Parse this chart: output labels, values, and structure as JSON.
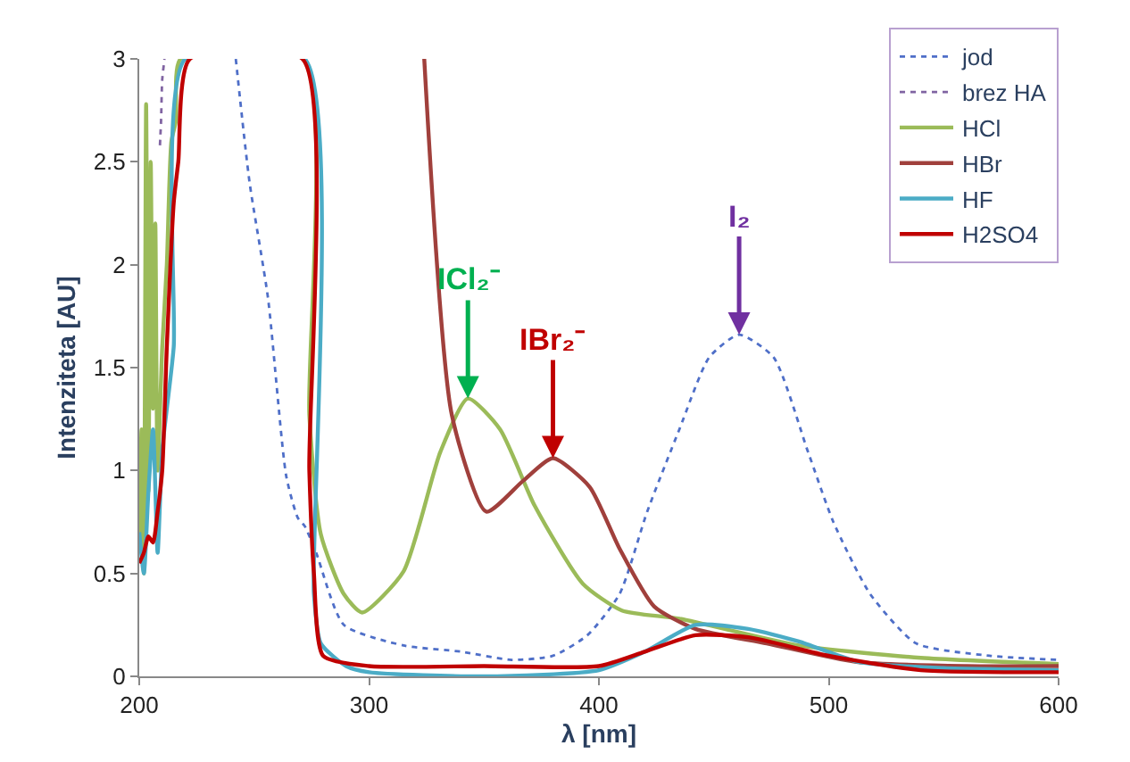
{
  "chart_data": {
    "type": "line",
    "xlabel": "λ [nm]",
    "ylabel": "Intenziteta [AU]",
    "xlim": [
      200,
      600
    ],
    "xticks": [
      200,
      300,
      400,
      500,
      600
    ],
    "ylim": [
      0,
      3
    ],
    "yticks": [
      0,
      0.5,
      1,
      1.5,
      2,
      2.5,
      3
    ],
    "grid": false,
    "legend": "top right",
    "marker": "none",
    "series": [
      {
        "name": "jod",
        "color": "#4f6fc8",
        "line_style": "dotted",
        "x": [
          242,
          248,
          256,
          264,
          269,
          272,
          277,
          289,
          315,
          340,
          362,
          380,
          395,
          409,
          421,
          435,
          448,
          461,
          476,
          491,
          502,
          518,
          538,
          570,
          600
        ],
        "values": [
          3,
          2.4,
          1.84,
          0.97,
          0.77,
          0.73,
          0.6,
          0.25,
          0.15,
          0.12,
          0.08,
          0.1,
          0.2,
          0.4,
          0.8,
          1.2,
          1.55,
          1.66,
          1.55,
          1.09,
          0.75,
          0.4,
          0.16,
          0.1,
          0.08
        ]
      },
      {
        "name": "brez HA",
        "color": "#8064a2",
        "line_style": "dotted",
        "x": [
          209,
          209.5,
          210,
          211
        ],
        "values": [
          2.58,
          2.7,
          2.9,
          3
        ]
      },
      {
        "name": "HCl",
        "color": "#9bbb59",
        "line_style": "solid",
        "x": [
          200,
          201,
          202,
          203,
          204,
          205,
          206,
          207,
          208,
          210,
          212,
          214,
          216,
          218,
          271.5,
          274,
          279,
          289,
          297,
          315,
          331,
          343,
          357,
          372,
          393,
          410,
          435,
          487,
          540,
          600
        ],
        "values": [
          0.6,
          1.2,
          0.5,
          2.78,
          0.9,
          2.5,
          1.3,
          2.2,
          1.0,
          1.6,
          2.0,
          2.6,
          2.7,
          3,
          3,
          1.27,
          0.69,
          0.4,
          0.31,
          0.51,
          1.09,
          1.35,
          1.2,
          0.83,
          0.45,
          0.32,
          0.28,
          0.15,
          0.09,
          0.06
        ]
      },
      {
        "name": "HBr",
        "color": "#a0403c",
        "line_style": "solid",
        "x": [
          324,
          336,
          351,
          367,
          380,
          396,
          409,
          424,
          442,
          473,
          512,
          560,
          600
        ],
        "values": [
          3,
          1.27,
          0.8,
          0.95,
          1.06,
          0.92,
          0.62,
          0.34,
          0.23,
          0.16,
          0.07,
          0.05,
          0.05
        ]
      },
      {
        "name": "HF",
        "color": "#4bacc6",
        "line_style": "solid",
        "x": [
          200,
          202,
          204,
          206,
          208,
          210,
          212,
          215,
          220,
          272,
          276,
          279,
          290,
          300,
          350,
          400,
          420,
          442,
          465,
          487,
          513,
          550,
          600
        ],
        "values": [
          0.7,
          0.5,
          0.9,
          1.2,
          0.6,
          1.1,
          1.3,
          1.6,
          3,
          3,
          0.4,
          0.16,
          0.05,
          0.02,
          0.0,
          0.03,
          0.12,
          0.25,
          0.23,
          0.17,
          0.07,
          0.04,
          0.03
        ]
      },
      {
        "name": "H2SO4",
        "color": "#c00000",
        "line_style": "solid",
        "x": [
          200,
          202,
          204,
          206,
          208,
          210,
          212,
          215,
          217,
          222,
          271,
          274,
          276,
          280,
          300,
          350,
          400,
          420,
          442,
          465,
          500,
          540,
          600
        ],
        "values": [
          0.55,
          0.6,
          0.68,
          0.65,
          0.8,
          1.0,
          1.6,
          2.3,
          2.5,
          3,
          3,
          1.0,
          0.5,
          0.1,
          0.05,
          0.05,
          0.05,
          0.12,
          0.2,
          0.19,
          0.1,
          0.03,
          0.02
        ]
      }
    ],
    "annotations": [
      {
        "text": "ICl₂⁻",
        "x": 343,
        "y": 1.35
      },
      {
        "text": "IBr₂⁻",
        "x": 380,
        "y": 1.06
      },
      {
        "text": "I₂",
        "x": 461,
        "y": 1.66
      }
    ]
  }
}
